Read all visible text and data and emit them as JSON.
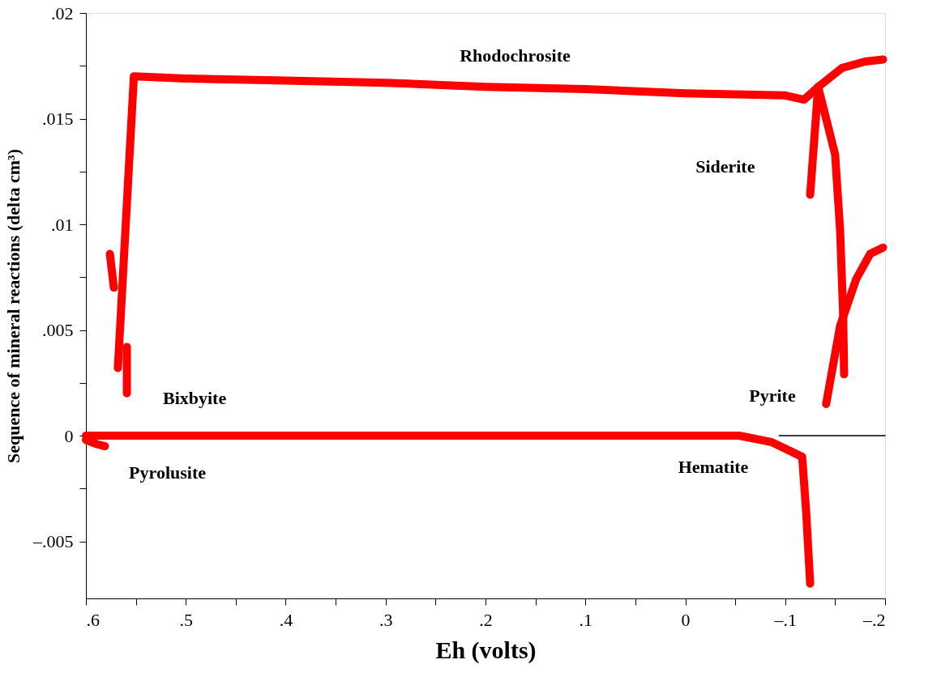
{
  "chart_data": {
    "type": "line",
    "xlabel": "Eh (volts)",
    "ylabel": "Sequence of mineral reactions (delta cm³)",
    "xlim": [
      0.6,
      -0.2
    ],
    "ylim": [
      -0.0077,
      0.02
    ],
    "xticks": [
      {
        "value": 0.6,
        "label": ".6"
      },
      {
        "value": 0.55,
        "label": null
      },
      {
        "value": 0.5,
        "label": ".5"
      },
      {
        "value": 0.45,
        "label": null
      },
      {
        "value": 0.4,
        "label": ".4"
      },
      {
        "value": 0.35,
        "label": null
      },
      {
        "value": 0.3,
        "label": ".3"
      },
      {
        "value": 0.25,
        "label": null
      },
      {
        "value": 0.2,
        "label": ".2"
      },
      {
        "value": 0.15,
        "label": null
      },
      {
        "value": 0.1,
        "label": ".1"
      },
      {
        "value": 0.05,
        "label": null
      },
      0,
      {
        "value": -0.05,
        "label": null
      },
      {
        "value": -0.1,
        "label": "–.1"
      },
      {
        "value": -0.15,
        "label": null
      },
      {
        "value": -0.2,
        "label": "–.2"
      }
    ],
    "yticks": [
      {
        "value": -0.005,
        "label": "–.005"
      },
      {
        "value": -0.0025,
        "label": null
      },
      0,
      {
        "value": 0.0025,
        "label": null
      },
      {
        "value": 0.005,
        "label": ".005"
      },
      {
        "value": 0.0075,
        "label": null
      },
      {
        "value": 0.01,
        "label": ".01"
      },
      {
        "value": 0.0125,
        "label": null
      },
      {
        "value": 0.015,
        "label": ".015"
      },
      {
        "value": 0.0175,
        "label": null
      },
      {
        "value": 0.02,
        "label": ".02"
      }
    ],
    "grid": false,
    "series": [
      {
        "color": "#ff0000",
        "x": [
          0.568,
          0.552,
          0.5,
          0.4,
          0.3,
          0.2,
          0.1,
          0.0,
          -0.1,
          -0.119,
          -0.133,
          -0.157,
          -0.18,
          -0.198
        ],
        "values": [
          0.0032,
          0.017,
          0.0169,
          0.0168,
          0.0167,
          0.0165,
          0.0164,
          0.0162,
          0.0161,
          0.0159,
          0.0165,
          0.0174,
          0.0177,
          0.0178
        ]
      },
      {
        "color": "#ff0000",
        "x": [
          -0.125,
          -0.133,
          -0.15,
          -0.155,
          -0.158,
          -0.159
        ],
        "values": [
          0.0114,
          0.0165,
          0.0133,
          0.0097,
          0.0058,
          0.0029
        ]
      },
      {
        "color": "#ff0000",
        "x": [
          -0.141,
          -0.155,
          -0.171,
          -0.185,
          -0.198
        ],
        "values": [
          0.0015,
          0.0052,
          0.0074,
          0.0086,
          0.0089
        ]
      },
      {
        "color": "#ff0000",
        "x": [
          0.576,
          0.572,
          0.565,
          0.559,
          0.559
        ],
        "values": [
          0.0086,
          0.007,
          null,
          0.0042,
          0.002
        ]
      },
      {
        "color": "#ff0000",
        "x": [
          0.6,
          0.589,
          0.581
        ],
        "values": [
          -0.0002,
          -0.0004,
          -0.0005
        ]
      },
      {
        "color": "#ff0000",
        "x": [
          0.6,
          0.3,
          0.0,
          -0.054,
          -0.086,
          -0.117,
          -0.121,
          -0.125
        ],
        "values": [
          0,
          0,
          0,
          0,
          -0.0003,
          -0.001,
          -0.0036,
          -0.007
        ]
      },
      {
        "color": "#000000",
        "x": [
          -0.094,
          -0.2
        ],
        "values": [
          0,
          0
        ]
      }
    ],
    "annotations": [
      "Rhodochrosite",
      "Siderite",
      "Bixbyite",
      "Pyrite",
      "Pyrolusite",
      "Hematite"
    ]
  }
}
